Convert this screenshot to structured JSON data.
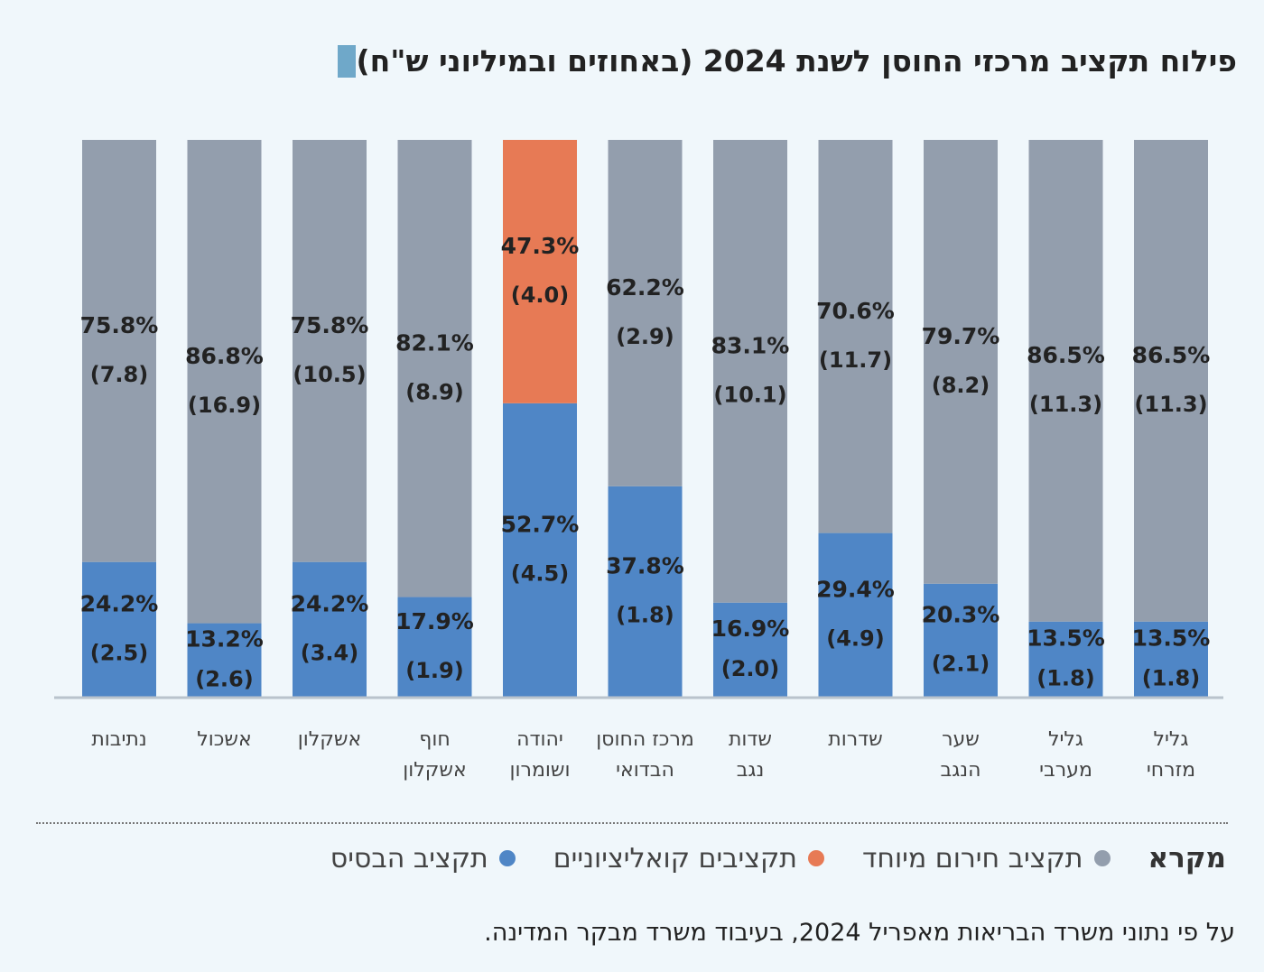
{
  "title": "פילוח תקציב מרכזי החוסן לשנת 2024 (באחוזים ובמיליוני ש\"ח)",
  "legend": {
    "title": "מקרא",
    "items": [
      {
        "label": "תקציב חירום מיוחד",
        "color": "#939ead"
      },
      {
        "label": "תקציבים קואליציוניים",
        "color": "#e77a55"
      },
      {
        "label": "תקציב הבסיס",
        "color": "#4f86c6"
      }
    ]
  },
  "source": "על פי נתוני משרד הבריאות מאפריל 2024, בעיבוד משרד מבקר המדינה.",
  "chart_data": {
    "type": "bar",
    "stacked": true,
    "ylim": [
      0,
      100
    ],
    "categories": [
      {
        "line1": "גליל",
        "line2": "מזרחי"
      },
      {
        "line1": "גליל",
        "line2": "מערבי"
      },
      {
        "line1": "שער",
        "line2": "הנגב"
      },
      {
        "line1": "שדרות",
        "line2": ""
      },
      {
        "line1": "שדות",
        "line2": "נגב"
      },
      {
        "line1": "מרכז החוסן",
        "line2": "הבדואי"
      },
      {
        "line1": "יהודה",
        "line2": "ושומרון"
      },
      {
        "line1": "חוף",
        "line2": "אשקלון"
      },
      {
        "line1": "אשקלון",
        "line2": ""
      },
      {
        "line1": "אשכול",
        "line2": ""
      },
      {
        "line1": "נתיבות",
        "line2": ""
      }
    ],
    "series": [
      {
        "key": "base",
        "color": "#4f86c6",
        "values": [
          13.5,
          13.5,
          20.3,
          29.4,
          16.9,
          37.8,
          52.7,
          17.9,
          24.2,
          13.2,
          24.2
        ],
        "pct_labels": [
          "13.5%",
          "13.5%",
          "20.3%",
          "29.4%",
          "16.9%",
          "37.8%",
          "52.7%",
          "17.9%",
          "24.2%",
          "13.2%",
          "24.2%"
        ],
        "amounts": [
          "(1.8)",
          "(1.8)",
          "(2.1)",
          "(4.9)",
          "(2.0)",
          "(1.8)",
          "(4.5)",
          "(1.9)",
          "(3.4)",
          "(2.6)",
          "(2.5)"
        ]
      },
      {
        "key": "emergency",
        "color": "#939ead",
        "values": [
          86.5,
          86.5,
          79.7,
          70.6,
          83.1,
          62.2,
          0,
          82.1,
          75.8,
          86.8,
          75.8
        ],
        "pct_labels": [
          "86.5%",
          "86.5%",
          "79.7%",
          "70.6%",
          "83.1%",
          "62.2%",
          "",
          "82.1%",
          "75.8%",
          "86.8%",
          "75.8%"
        ],
        "amounts": [
          "(11.3)",
          "(11.3)",
          "(8.2)",
          "(11.7)",
          "(10.1)",
          "(2.9)",
          "",
          "(8.9)",
          "(10.5)",
          "(16.9)",
          "(7.8)"
        ]
      },
      {
        "key": "coalition",
        "color": "#e77a55",
        "values": [
          0,
          0,
          0,
          0,
          0,
          0,
          47.3,
          0,
          0,
          0,
          0
        ],
        "pct_labels": [
          "",
          "",
          "",
          "",
          "",
          "",
          "47.3%",
          "",
          "",
          "",
          ""
        ],
        "amounts": [
          "",
          "",
          "",
          "",
          "",
          "",
          "(4.0)",
          "",
          "",
          "",
          ""
        ]
      }
    ]
  }
}
